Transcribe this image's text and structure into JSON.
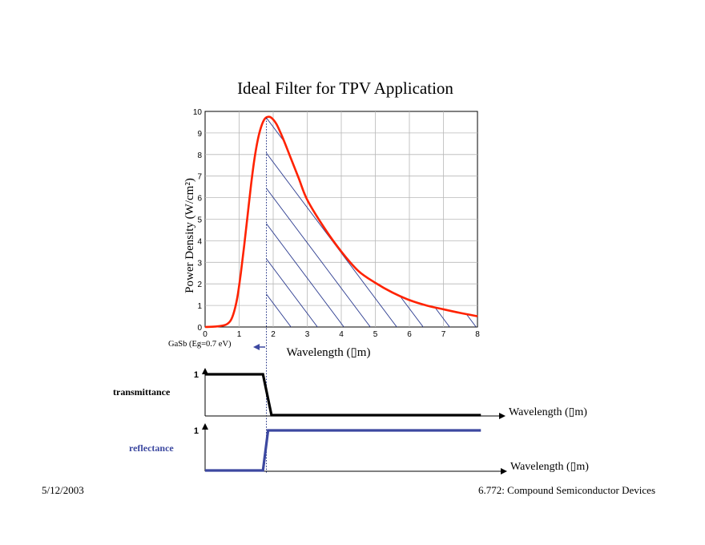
{
  "slide": {
    "footer_date": "5/12/2003",
    "footer_course": "6.772: Compound Semiconductor Devices",
    "bandgap_label": "GaSb (Eg=0.7 eV)",
    "transmittance_label": "transmittance",
    "reflectance_label": "reflectance",
    "filter_axis_label": "Wavelength (▯m)",
    "filter_level_label": "1"
  },
  "colors": {
    "curve": "#ff2200",
    "hatch": "#2b3b8f",
    "transmittance": "#000000",
    "reflectance": "#3c48a0",
    "arrow": "#3c48a0"
  },
  "chart_data": {
    "type": "line",
    "title": "Ideal Filter for TPV Application",
    "xlabel": "Wavelength (▯m)",
    "ylabel": "Power Density (W/cm²)",
    "xlim": [
      0,
      8
    ],
    "ylim": [
      0,
      10
    ],
    "xticks": [
      "0",
      "1",
      "2",
      "3",
      "4",
      "5",
      "6",
      "7",
      "8"
    ],
    "yticks": [
      "0",
      "1",
      "2",
      "3",
      "4",
      "5",
      "6",
      "7",
      "8",
      "9",
      "10"
    ],
    "grid": true,
    "cutoff_wavelength": 1.8,
    "x": [
      0,
      0.3,
      0.6,
      0.75,
      0.85,
      0.95,
      1.05,
      1.15,
      1.25,
      1.35,
      1.45,
      1.55,
      1.65,
      1.75,
      1.85,
      1.95,
      2.1,
      2.3,
      2.5,
      2.75,
      3.0,
      3.5,
      4.0,
      4.5,
      5.0,
      5.5,
      6.0,
      6.5,
      7.0,
      7.5,
      8.0
    ],
    "y": [
      0,
      0.02,
      0.1,
      0.3,
      0.7,
      1.4,
      2.5,
      3.8,
      5.2,
      6.6,
      7.8,
      8.7,
      9.3,
      9.65,
      9.75,
      9.7,
      9.4,
      8.7,
      7.9,
      6.9,
      5.9,
      4.6,
      3.5,
      2.6,
      2.05,
      1.6,
      1.25,
      1.0,
      0.82,
      0.65,
      0.5
    ],
    "series": [
      {
        "name": "transmittance",
        "x": [
          0,
          1.7,
          1.95,
          8.1
        ],
        "y": [
          1,
          1,
          0,
          0
        ]
      },
      {
        "name": "reflectance",
        "x": [
          0,
          1.7,
          1.85,
          8.1
        ],
        "y": [
          0,
          0,
          1,
          1
        ]
      }
    ]
  }
}
